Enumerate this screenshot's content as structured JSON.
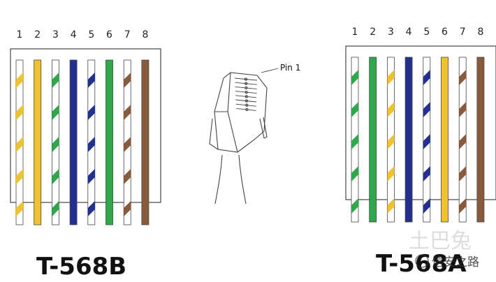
{
  "colors": {
    "white": "#ffffff",
    "orange": "#f2c12e",
    "green": "#2ea84a",
    "blue": "#23308f",
    "brown": "#8b5a3c",
    "outline": "#444444"
  },
  "pin_numbers": [
    "1",
    "2",
    "3",
    "4",
    "5",
    "6",
    "7",
    "8"
  ],
  "standards": [
    {
      "id": "t568b",
      "title": "T-568B",
      "wires": [
        {
          "pin": "1",
          "color": "orange",
          "striped": true
        },
        {
          "pin": "2",
          "color": "orange",
          "striped": false
        },
        {
          "pin": "3",
          "color": "green",
          "striped": true
        },
        {
          "pin": "4",
          "color": "blue",
          "striped": false
        },
        {
          "pin": "5",
          "color": "blue",
          "striped": true
        },
        {
          "pin": "6",
          "color": "green",
          "striped": false
        },
        {
          "pin": "7",
          "color": "brown",
          "striped": true
        },
        {
          "pin": "8",
          "color": "brown",
          "striped": false
        }
      ]
    },
    {
      "id": "t568a",
      "title": "T-568A",
      "wires": [
        {
          "pin": "1",
          "color": "green",
          "striped": true
        },
        {
          "pin": "2",
          "color": "green",
          "striped": false
        },
        {
          "pin": "3",
          "color": "orange",
          "striped": true
        },
        {
          "pin": "4",
          "color": "blue",
          "striped": false
        },
        {
          "pin": "5",
          "color": "blue",
          "striped": true
        },
        {
          "pin": "6",
          "color": "orange",
          "striped": false
        },
        {
          "pin": "7",
          "color": "brown",
          "striped": true
        },
        {
          "pin": "8",
          "color": "brown",
          "striped": false
        }
      ]
    }
  ],
  "connector": {
    "callout": "Pin 1"
  },
  "watermark": {
    "logo": "土巴兔",
    "account": "信安之路"
  }
}
